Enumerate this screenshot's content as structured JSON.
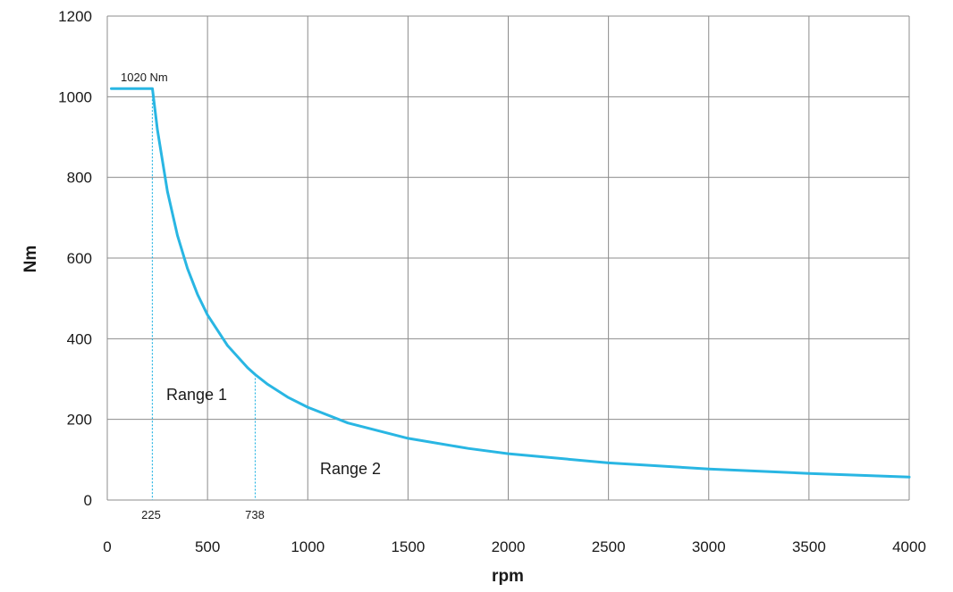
{
  "chart_data": {
    "type": "line",
    "title": "",
    "xlabel": "rpm",
    "ylabel": "Nm",
    "xlim": [
      0,
      4000
    ],
    "ylim": [
      0,
      1200
    ],
    "x_ticks": [
      0,
      500,
      1000,
      1500,
      2000,
      2500,
      3000,
      3500,
      4000
    ],
    "x_tick_labels": [
      "0",
      "500",
      "1000",
      "1500",
      "2000",
      "2500",
      "3000",
      "3500",
      "4000"
    ],
    "y_ticks": [
      0,
      200,
      400,
      600,
      800,
      1000,
      1200
    ],
    "y_tick_labels": [
      "0",
      "200",
      "400",
      "600",
      "800",
      "1000",
      "1200"
    ],
    "grid": true,
    "color": "#29b6e3",
    "series": [
      {
        "x": [
          20,
          100,
          200,
          225,
          250,
          300,
          350,
          400,
          450,
          500,
          600,
          700,
          738,
          800,
          900,
          1000,
          1200,
          1500,
          1800,
          2000,
          2500,
          3000,
          3500,
          4000
        ],
        "y": [
          1020,
          1020,
          1020,
          1020,
          918,
          765,
          656,
          574,
          510,
          459,
          383,
          328,
          311,
          287,
          255,
          230,
          191,
          153,
          128,
          115,
          92,
          77,
          66,
          57
        ]
      }
    ],
    "annotations": {
      "peak_label": "1020 Nm",
      "marker_1": {
        "x": 225,
        "label": "225"
      },
      "marker_2": {
        "x": 738,
        "label": "738"
      },
      "range_1": "Range 1",
      "range_2": "Range 2"
    }
  }
}
